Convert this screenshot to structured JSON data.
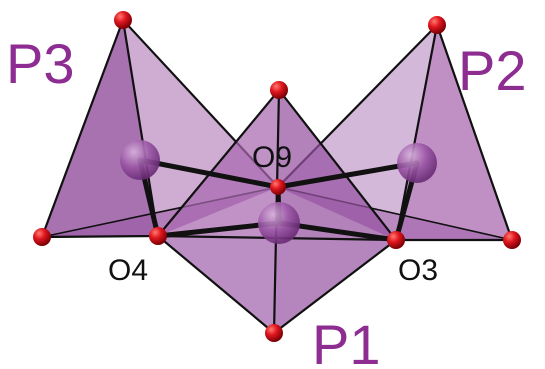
{
  "labels": {
    "p1": "P1",
    "p2": "P2",
    "p3": "P3",
    "o9": "O9",
    "o4": "O4",
    "o3": "O3"
  },
  "colors": {
    "polyhedron_fill": "#a15fa8",
    "polyhedron_dark": "#7b3b86",
    "phosphorus_atom": "#9a55a5",
    "oxygen_atom": "#d8131b",
    "edge_color": "#111111",
    "label_purple": "#8e2d91"
  }
}
